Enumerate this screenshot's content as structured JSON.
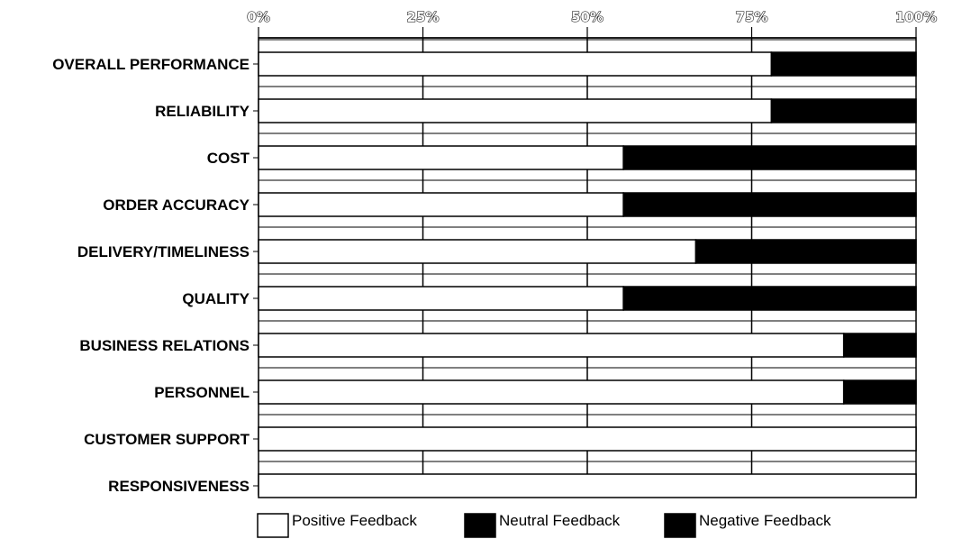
{
  "chart_data": {
    "type": "bar",
    "stacked": true,
    "orientation": "horizontal",
    "categories": [
      "OVERALL PERFORMANCE",
      "RELIABILITY",
      "COST",
      "ORDER ACCURACY",
      "DELIVERY/TIMELINESS",
      "QUALITY",
      "BUSINESS RELATIONS",
      "PERSONNEL",
      "CUSTOMER SUPPORT",
      "RESPONSIVENESS"
    ],
    "series": [
      {
        "name": "Positive Feedback",
        "values": [
          78,
          78,
          55.5,
          55.5,
          66.5,
          55.5,
          89,
          89,
          100,
          100
        ],
        "color": "#ffffff"
      },
      {
        "name": "Neutral Feedback",
        "values": [
          0,
          0,
          0,
          0,
          0,
          0,
          0,
          0,
          0,
          0
        ],
        "color": "#000000"
      },
      {
        "name": "Negative Feedback",
        "values": [
          22,
          22,
          44.5,
          44.5,
          33.5,
          44.5,
          11,
          11,
          0,
          0
        ],
        "color": "#000000"
      }
    ],
    "xticks": [
      "0%",
      "25%",
      "50%",
      "75%",
      "100%"
    ],
    "xlim": [
      0,
      100
    ],
    "grid": true,
    "legend": "bottom"
  }
}
